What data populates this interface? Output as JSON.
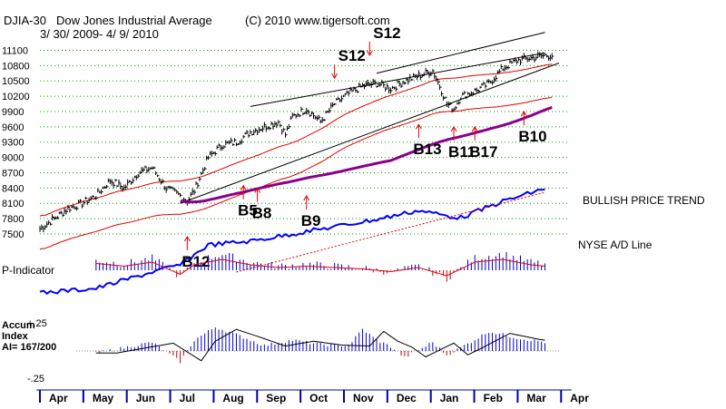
{
  "header": {
    "symbol": "DJIA-30",
    "name": "Dow Jones Industrial Average",
    "copyright": "(C) 2010 www.tigersoft.com",
    "range": "3/ 30/ 2009- 4/ 9/ 2010"
  },
  "labels": {
    "trend": "BULLISH PRICE TREND",
    "ad_line": "NYSE A/D Line",
    "p_indicator": "P-Indicator",
    "accum_line1": "Accum",
    "accum_line2": "Index",
    "accum_line3": "AI= 167/200",
    "accum_hi": "+.25",
    "accum_lo": "-.25"
  },
  "colors": {
    "price_bar": "#000000",
    "bollinger": "#e00000",
    "ma": "#8a008a",
    "ad_line": "#0000ff",
    "ind_pos": "#0000cc",
    "ind_neg": "#cc0000",
    "grid": "#00a000",
    "signal_arrow": "#e00000"
  },
  "chart_data": {
    "type": "bar",
    "title": "DJIA-30 Dow Jones Industrial Average",
    "x": {
      "start": "2009-03-30",
      "end": "2010-04-09"
    },
    "months": [
      "Apr",
      "May",
      "Jun",
      "Jul",
      "Aug",
      "Sep",
      "Oct",
      "Nov",
      "Dec",
      "Jan",
      "Feb",
      "Mar",
      "Apr"
    ],
    "y_ticks": [
      11100,
      10800,
      10500,
      10200,
      9900,
      9600,
      9300,
      9000,
      8700,
      8400,
      8100,
      7800,
      7500
    ],
    "ylim": [
      7500,
      11250
    ],
    "price_anchors": [
      [
        0,
        7600
      ],
      [
        2,
        7800
      ],
      [
        4,
        8000
      ],
      [
        6,
        8100
      ],
      [
        8,
        8250
      ],
      [
        10,
        8550
      ],
      [
        12,
        8400
      ],
      [
        14,
        8700
      ],
      [
        16,
        8800
      ],
      [
        18,
        8400
      ],
      [
        20,
        8250
      ],
      [
        21,
        8150
      ],
      [
        22,
        8350
      ],
      [
        24,
        9000
      ],
      [
        26,
        9250
      ],
      [
        28,
        9300
      ],
      [
        30,
        9500
      ],
      [
        32,
        9600
      ],
      [
        34,
        9700
      ],
      [
        35,
        9450
      ],
      [
        36,
        9800
      ],
      [
        38,
        9950
      ],
      [
        40,
        9700
      ],
      [
        42,
        10050
      ],
      [
        44,
        10250
      ],
      [
        46,
        10400
      ],
      [
        48,
        10450
      ],
      [
        50,
        10350
      ],
      [
        52,
        10500
      ],
      [
        54,
        10600
      ],
      [
        56,
        10700
      ],
      [
        57,
        10400
      ],
      [
        58,
        10050
      ],
      [
        59,
        9950
      ],
      [
        60,
        10200
      ],
      [
        62,
        10300
      ],
      [
        64,
        10450
      ],
      [
        66,
        10750
      ],
      [
        68,
        10900
      ],
      [
        70,
        10950
      ],
      [
        72,
        11000
      ]
    ],
    "signals": [
      {
        "label": "S12",
        "x": 47,
        "price": 10950,
        "dir": "down"
      },
      {
        "label": "S12",
        "x": 42,
        "price": 10500,
        "dir": "down"
      },
      {
        "label": "B12",
        "x": 21,
        "price": 7500,
        "dir": "up"
      },
      {
        "label": "B5",
        "x": 29,
        "price": 8500,
        "dir": "up"
      },
      {
        "label": "B8",
        "x": 31,
        "price": 8450,
        "dir": "up"
      },
      {
        "label": "B9",
        "x": 38,
        "price": 8300,
        "dir": "up"
      },
      {
        "label": "B13",
        "x": 54,
        "price": 9700,
        "dir": "up"
      },
      {
        "label": "B11",
        "x": 59,
        "price": 9650,
        "dir": "up"
      },
      {
        "label": "B17",
        "x": 62,
        "price": 9650,
        "dir": "up"
      },
      {
        "label": "B10",
        "x": 69,
        "price": 9950,
        "dir": "up"
      }
    ],
    "trendlines": [
      {
        "from": [
          20,
          8100
        ],
        "to": [
          74,
          10850
        ]
      },
      {
        "from": [
          30,
          10000
        ],
        "to": [
          72,
          11050
        ]
      },
      {
        "from": [
          48,
          10650
        ],
        "to": [
          72,
          11450
        ]
      }
    ],
    "p_indicator_anchors": [
      [
        0,
        -5
      ],
      [
        4,
        10
      ],
      [
        8,
        25
      ],
      [
        12,
        15
      ],
      [
        16,
        30
      ],
      [
        20,
        -15
      ],
      [
        22,
        20
      ],
      [
        26,
        40
      ],
      [
        30,
        20
      ],
      [
        34,
        10
      ],
      [
        38,
        15
      ],
      [
        42,
        10
      ],
      [
        46,
        5
      ],
      [
        50,
        -5
      ],
      [
        54,
        10
      ],
      [
        58,
        -20
      ],
      [
        62,
        30
      ],
      [
        66,
        40
      ],
      [
        70,
        20
      ],
      [
        72,
        15
      ]
    ],
    "accum_anchors": [
      [
        0,
        0.06
      ],
      [
        4,
        0.08
      ],
      [
        8,
        -0.02
      ],
      [
        12,
        0.03
      ],
      [
        16,
        0.08
      ],
      [
        20,
        -0.1
      ],
      [
        22,
        0.1
      ],
      [
        25,
        0.22
      ],
      [
        28,
        0.15
      ],
      [
        32,
        0.05
      ],
      [
        36,
        0.1
      ],
      [
        40,
        0.06
      ],
      [
        44,
        0.05
      ],
      [
        46,
        0.2
      ],
      [
        48,
        0.1
      ],
      [
        50,
        0.04
      ],
      [
        52,
        -0.06
      ],
      [
        56,
        0.08
      ],
      [
        58,
        -0.04
      ],
      [
        60,
        0.03
      ],
      [
        64,
        0.18
      ],
      [
        68,
        0.12
      ],
      [
        72,
        0.08
      ]
    ]
  }
}
